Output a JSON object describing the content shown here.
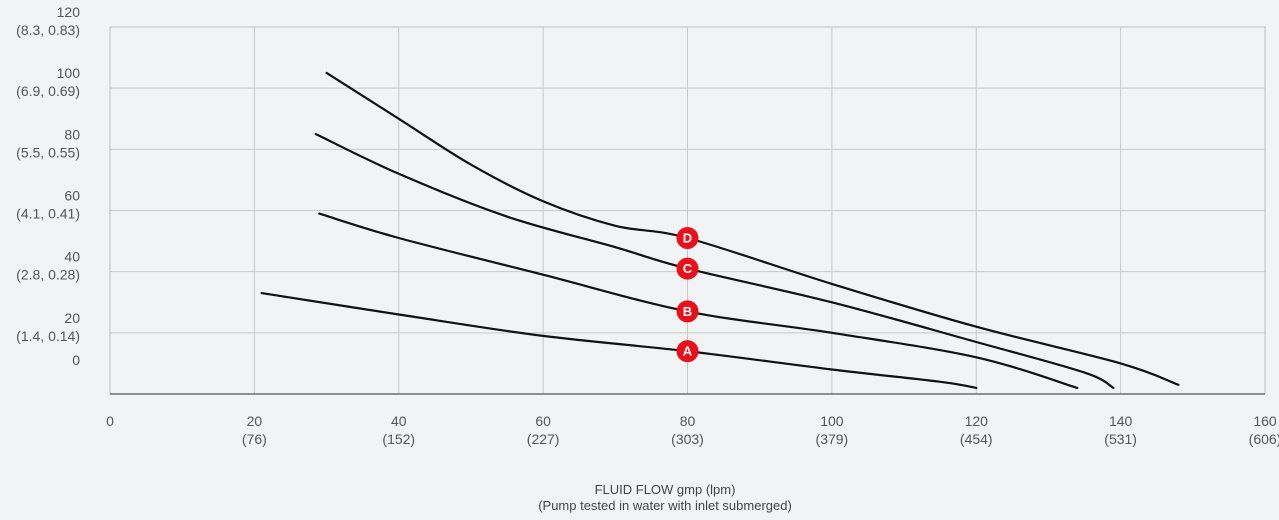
{
  "chart_data": {
    "type": "line",
    "xlabel": "FLUID FLOW gmp (lpm)",
    "xlabel_note": "(Pump tested in water with inlet submerged)",
    "xlim": [
      0,
      160
    ],
    "ylim": [
      0,
      120
    ],
    "x_ticks": [
      {
        "value": 0,
        "label": "0",
        "sub": ""
      },
      {
        "value": 20,
        "label": "20",
        "sub": "(76)"
      },
      {
        "value": 40,
        "label": "40",
        "sub": "(152)"
      },
      {
        "value": 60,
        "label": "60",
        "sub": "(227)"
      },
      {
        "value": 80,
        "label": "80",
        "sub": "(303)"
      },
      {
        "value": 100,
        "label": "100",
        "sub": "(379)"
      },
      {
        "value": 120,
        "label": "120",
        "sub": "(454)"
      },
      {
        "value": 140,
        "label": "140",
        "sub": "(531)"
      },
      {
        "value": 160,
        "label": "160",
        "sub": "(606)"
      }
    ],
    "y_ticks": [
      {
        "value": 0,
        "label": "0",
        "sub": ""
      },
      {
        "value": 20,
        "label": "20",
        "sub": "(1.4, 0.14)"
      },
      {
        "value": 40,
        "label": "40",
        "sub": "(2.8, 0.28)"
      },
      {
        "value": 60,
        "label": "60",
        "sub": "(4.1, 0.41)"
      },
      {
        "value": 80,
        "label": "80",
        "sub": "(5.5, 0.55)"
      },
      {
        "value": 100,
        "label": "100",
        "sub": "(6.9, 0.69)"
      },
      {
        "value": 120,
        "label": "120",
        "sub": "(8.3, 0.83)"
      }
    ],
    "grid": true,
    "series": [
      {
        "name": "A",
        "label_at": [
          80,
          14
        ],
        "x": [
          21,
          40,
          60,
          80,
          100,
          115,
          120
        ],
        "y": [
          33,
          26,
          19,
          14,
          8,
          4,
          2
        ]
      },
      {
        "name": "B",
        "label_at": [
          80,
          27
        ],
        "x": [
          29,
          40,
          60,
          80,
          100,
          120,
          134
        ],
        "y": [
          59,
          51,
          39,
          27,
          20,
          12,
          2
        ]
      },
      {
        "name": "C",
        "label_at": [
          80,
          41
        ],
        "x": [
          28.5,
          40,
          55,
          70,
          80,
          100,
          120,
          135,
          139
        ],
        "y": [
          85,
          72,
          58,
          48,
          41,
          30,
          17,
          7,
          2
        ]
      },
      {
        "name": "D",
        "label_at": [
          80,
          51
        ],
        "x": [
          30,
          40,
          50,
          60,
          70,
          80,
          100,
          120,
          140,
          148
        ],
        "y": [
          105,
          90,
          75,
          63,
          55,
          51,
          36,
          22,
          10,
          3
        ]
      }
    ],
    "colors": {
      "line": "#111111",
      "badge": "#e8101a",
      "grid": "#c8c8c8",
      "axis": "#555555"
    }
  }
}
